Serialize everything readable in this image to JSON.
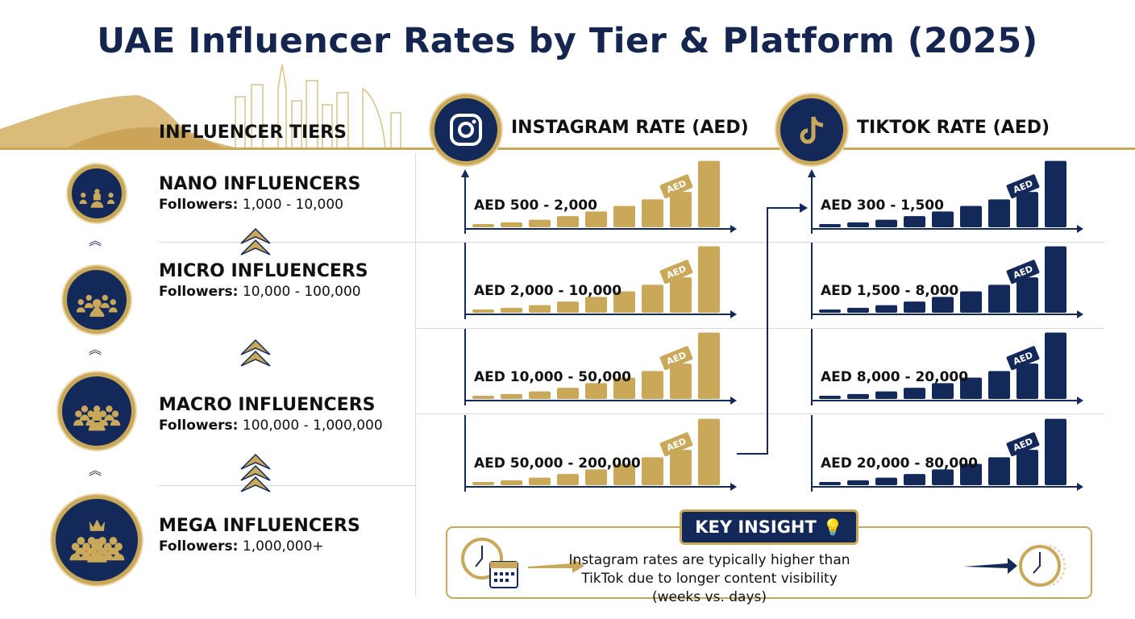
{
  "title": "UAE Influencer Rates by Tier & Platform (2025)",
  "colors": {
    "navy": "#13295a",
    "gold": "#c9a85a"
  },
  "tiers_header": "INFLUENCER TIERS",
  "instagram_header": "INSTAGRAM RATE (AED)",
  "tiktok_header": "TIKTOK RATE (AED)",
  "followers_label": "Followers:",
  "tiers": [
    {
      "name": "NANO INFLUENCERS",
      "followers": "1,000 - 10,000",
      "icon": "group-icon"
    },
    {
      "name": "MICRO INFLUENCERS",
      "followers": "10,000 - 100,000",
      "icon": "group-icon"
    },
    {
      "name": "MACRO INFLUENCERS",
      "followers": "100,000 - 1,000,000",
      "icon": "crowd-icon"
    },
    {
      "name": "MEGA INFLUENCERS",
      "followers": "1,000,000+",
      "icon": "crowd-crown-icon"
    }
  ],
  "instagram_rates": [
    "AED 500 - 2,000",
    "AED 2,000 - 10,000",
    "AED 10,000 - 50,000",
    "AED 50,000 - 200,000"
  ],
  "tiktok_rates": [
    "AED 300 - 1,500",
    "AED 1,500 - 8,000",
    "AED 8,000 - 20,000",
    "AED 20,000 - 80,000"
  ],
  "tag_label": "AED",
  "insight": {
    "badge": "KEY INSIGHT",
    "text": "Instagram rates are typically higher than TikTok due to longer content visibility (weeks vs. days)"
  }
}
